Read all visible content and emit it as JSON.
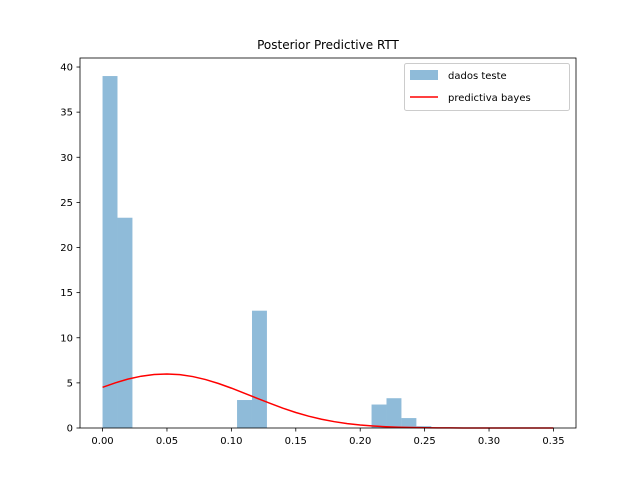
{
  "chart_data": {
    "type": "bar",
    "title": "Posterior Predictive RTT",
    "xlabel": "",
    "ylabel": "",
    "xlim": [
      -0.0175,
      0.3675
    ],
    "ylim": [
      0,
      41
    ],
    "xticks": [
      0.0,
      0.05,
      0.1,
      0.15,
      0.2,
      0.25,
      0.3,
      0.35
    ],
    "xtick_labels": [
      "0.00",
      "0.05",
      "0.10",
      "0.15",
      "0.20",
      "0.25",
      "0.30",
      "0.35"
    ],
    "yticks": [
      0,
      5,
      10,
      15,
      20,
      25,
      30,
      35,
      40
    ],
    "ytick_labels": [
      "0",
      "5",
      "10",
      "15",
      "20",
      "25",
      "30",
      "35",
      "40"
    ],
    "grid": false,
    "legend_position": "top-right",
    "series": [
      {
        "name": "dados teste",
        "type": "histogram",
        "color": "#8fbbd9",
        "bin_width": 0.0116,
        "bins": [
          {
            "x0": 0.0,
            "value": 39.0
          },
          {
            "x0": 0.0116,
            "value": 23.3
          },
          {
            "x0": 0.1044,
            "value": 3.1
          },
          {
            "x0": 0.116,
            "value": 13.0
          },
          {
            "x0": 0.2088,
            "value": 2.6
          },
          {
            "x0": 0.2204,
            "value": 3.3
          },
          {
            "x0": 0.232,
            "value": 1.1
          },
          {
            "x0": 0.2436,
            "value": 0.2
          }
        ]
      },
      {
        "name": "predictiva bayes",
        "type": "line",
        "color": "#ff0000",
        "x": [
          0.0,
          0.01,
          0.02,
          0.03,
          0.04,
          0.05,
          0.06,
          0.07,
          0.08,
          0.09,
          0.1,
          0.11,
          0.12,
          0.13,
          0.14,
          0.15,
          0.16,
          0.17,
          0.18,
          0.19,
          0.2,
          0.21,
          0.22,
          0.23,
          0.24,
          0.25,
          0.26,
          0.27,
          0.28,
          0.29,
          0.3,
          0.31,
          0.32,
          0.33,
          0.34,
          0.35
        ],
        "y": [
          4.51,
          5.01,
          5.43,
          5.74,
          5.93,
          5.99,
          5.91,
          5.7,
          5.37,
          4.93,
          4.42,
          3.86,
          3.29,
          2.73,
          2.2,
          1.72,
          1.31,
          0.97,
          0.7,
          0.49,
          0.33,
          0.22,
          0.14,
          0.08,
          0.05,
          0.03,
          0.01,
          0.01,
          0.0,
          0.0,
          0.0,
          0.0,
          0.0,
          0.0,
          0.0,
          0.0
        ]
      }
    ]
  }
}
